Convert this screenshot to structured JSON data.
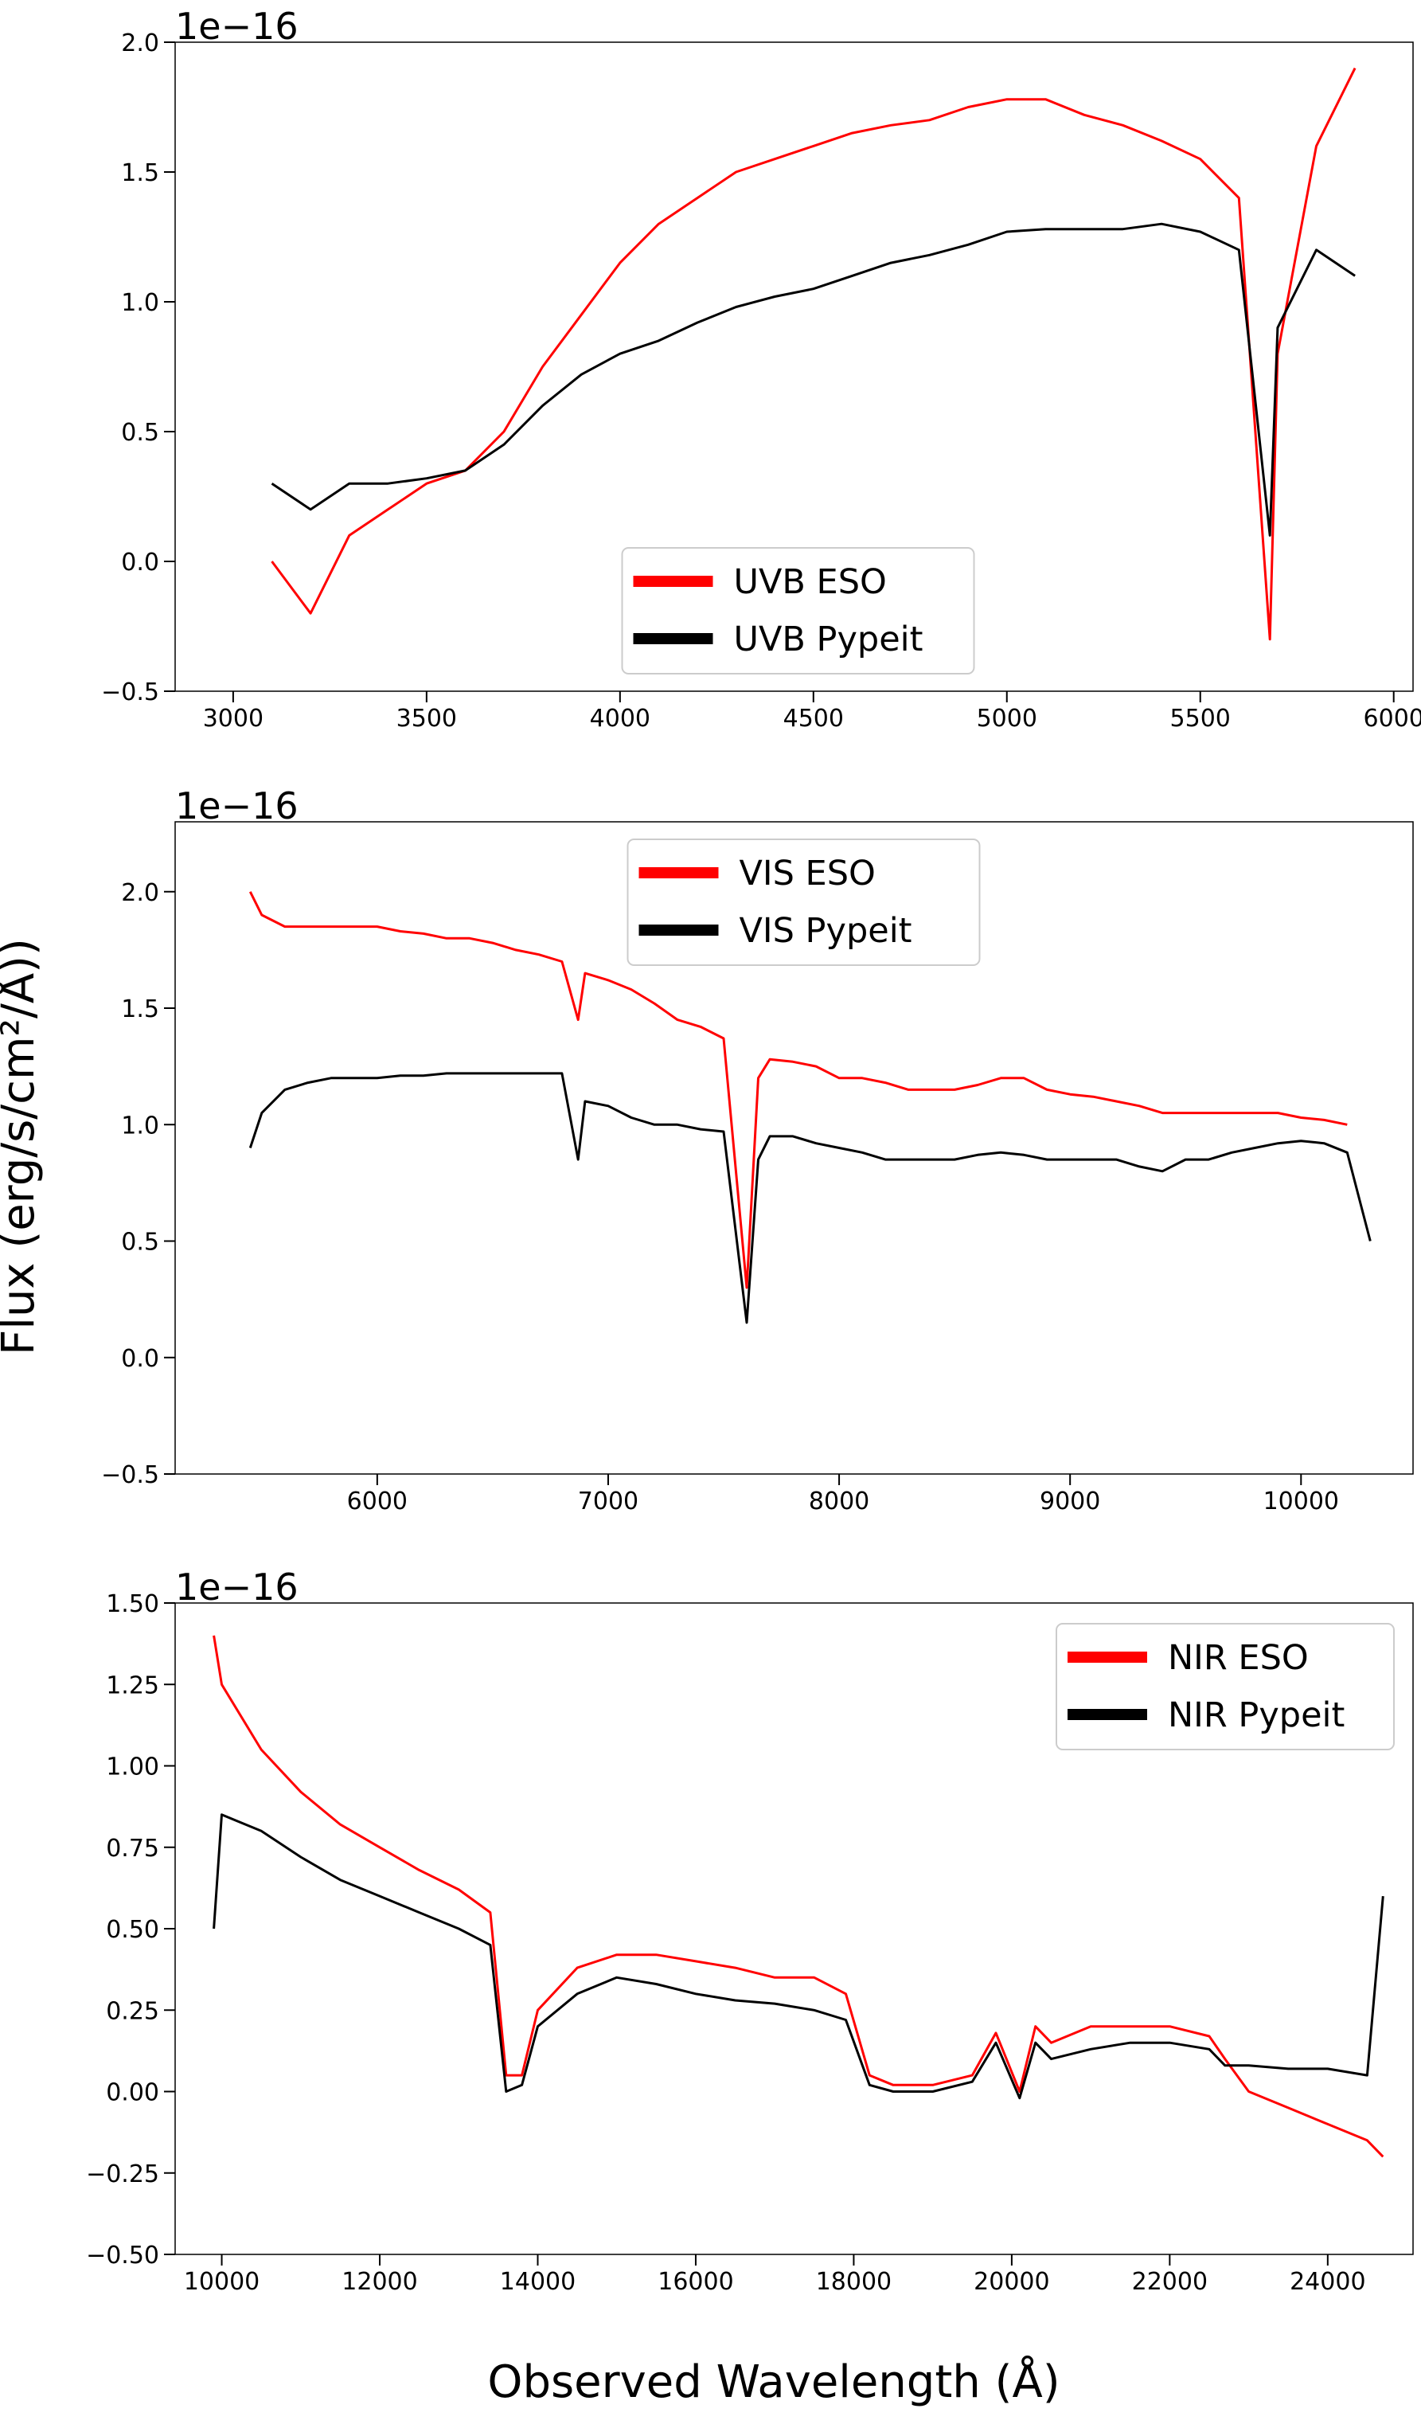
{
  "ylabel": "Flux (erg/s/cm²/Å))",
  "xlabel": "Observed Wavelength (Å)",
  "chart_data": [
    {
      "type": "line",
      "offset_label": "1e−16",
      "legend": "lower center",
      "xlim": [
        2850,
        6050
      ],
      "ylim": [
        -0.5,
        2.0
      ],
      "xticks": [
        3000,
        3500,
        4000,
        4500,
        5000,
        5500,
        6000
      ],
      "yticks": [
        {
          "value": -0.5,
          "label": "−0.5"
        },
        {
          "value": 0,
          "label": "0.0"
        },
        {
          "value": 0.5,
          "label": "0.5"
        },
        {
          "value": 1,
          "label": "1.0"
        },
        {
          "value": 1.5,
          "label": "1.5"
        },
        {
          "value": 2,
          "label": "2.0"
        }
      ],
      "x": [
        3100,
        3200,
        3300,
        3400,
        3500,
        3600,
        3700,
        3800,
        3900,
        4000,
        4100,
        4200,
        4300,
        4400,
        4500,
        4600,
        4700,
        4800,
        4900,
        5000,
        5100,
        5200,
        5300,
        5400,
        5500,
        5600,
        5680,
        5700,
        5800,
        5900
      ],
      "series": [
        {
          "name": "UVB ESO",
          "color": "#ff0000",
          "values": [
            0.0,
            -0.2,
            0.1,
            0.2,
            0.3,
            0.35,
            0.5,
            0.75,
            0.95,
            1.15,
            1.3,
            1.4,
            1.5,
            1.55,
            1.6,
            1.65,
            1.68,
            1.7,
            1.75,
            1.78,
            1.78,
            1.72,
            1.68,
            1.62,
            1.55,
            1.4,
            -0.3,
            0.8,
            1.6,
            1.9
          ]
        },
        {
          "name": "UVB Pypeit",
          "color": "#000000",
          "values": [
            0.3,
            0.2,
            0.3,
            0.3,
            0.32,
            0.35,
            0.45,
            0.6,
            0.72,
            0.8,
            0.85,
            0.92,
            0.98,
            1.02,
            1.05,
            1.1,
            1.15,
            1.18,
            1.22,
            1.27,
            1.28,
            1.28,
            1.28,
            1.3,
            1.27,
            1.2,
            0.1,
            0.9,
            1.2,
            1.1
          ]
        }
      ]
    },
    {
      "type": "line",
      "offset_label": "1e−16",
      "legend": "upper center",
      "xlim": [
        5125,
        10485
      ],
      "ylim": [
        -0.5,
        2.3
      ],
      "xticks": [
        6000,
        7000,
        8000,
        9000,
        10000
      ],
      "yticks": [
        {
          "value": -0.5,
          "label": "−0.5"
        },
        {
          "value": 0,
          "label": "0.0"
        },
        {
          "value": 0.5,
          "label": "0.5"
        },
        {
          "value": 1,
          "label": "1.0"
        },
        {
          "value": 1.5,
          "label": "1.5"
        },
        {
          "value": 2,
          "label": "2.0"
        }
      ],
      "x": [
        5450,
        5500,
        5600,
        5700,
        5800,
        5900,
        6000,
        6100,
        6200,
        6300,
        6400,
        6500,
        6600,
        6700,
        6800,
        6870,
        6900,
        7000,
        7100,
        7200,
        7300,
        7400,
        7500,
        7600,
        7650,
        7700,
        7800,
        7900,
        8000,
        8100,
        8200,
        8300,
        8400,
        8500,
        8600,
        8700,
        8800,
        8900,
        9000,
        9100,
        9200,
        9300,
        9400,
        9500,
        9600,
        9700,
        9800,
        9900,
        10000,
        10100,
        10200,
        10300
      ],
      "series": [
        {
          "name": "VIS ESO",
          "color": "#ff0000",
          "values": [
            2.0,
            1.9,
            1.85,
            1.85,
            1.85,
            1.85,
            1.85,
            1.83,
            1.82,
            1.8,
            1.8,
            1.78,
            1.75,
            1.73,
            1.7,
            1.45,
            1.65,
            1.62,
            1.58,
            1.52,
            1.45,
            1.42,
            1.37,
            0.3,
            1.2,
            1.28,
            1.27,
            1.25,
            1.2,
            1.2,
            1.18,
            1.15,
            1.15,
            1.15,
            1.17,
            1.2,
            1.2,
            1.15,
            1.13,
            1.12,
            1.1,
            1.08,
            1.05,
            1.05,
            1.05,
            1.05,
            1.05,
            1.05,
            1.03,
            1.02,
            1.0,
            null
          ]
        },
        {
          "name": "VIS Pypeit",
          "color": "#000000",
          "values": [
            0.9,
            1.05,
            1.15,
            1.18,
            1.2,
            1.2,
            1.2,
            1.21,
            1.21,
            1.22,
            1.22,
            1.22,
            1.22,
            1.22,
            1.22,
            0.85,
            1.1,
            1.08,
            1.03,
            1.0,
            1.0,
            0.98,
            0.97,
            0.15,
            0.85,
            0.95,
            0.95,
            0.92,
            0.9,
            0.88,
            0.85,
            0.85,
            0.85,
            0.85,
            0.87,
            0.88,
            0.87,
            0.85,
            0.85,
            0.85,
            0.85,
            0.82,
            0.8,
            0.85,
            0.85,
            0.88,
            0.9,
            0.92,
            0.93,
            0.92,
            0.88,
            0.5
          ]
        }
      ]
    },
    {
      "type": "line",
      "offset_label": "1e−16",
      "legend": "upper right",
      "xlim": [
        9410,
        25080
      ],
      "ylim": [
        -0.5,
        1.5
      ],
      "xticks": [
        10000,
        12000,
        14000,
        16000,
        18000,
        20000,
        22000,
        24000
      ],
      "yticks": [
        {
          "value": -0.5,
          "label": "−0.50"
        },
        {
          "value": -0.25,
          "label": "−0.25"
        },
        {
          "value": 0,
          "label": "0.00"
        },
        {
          "value": 0.25,
          "label": "0.25"
        },
        {
          "value": 0.5,
          "label": "0.50"
        },
        {
          "value": 0.75,
          "label": "0.75"
        },
        {
          "value": 1,
          "label": "1.00"
        },
        {
          "value": 1.25,
          "label": "1.25"
        },
        {
          "value": 1.5,
          "label": "1.50"
        }
      ],
      "x": [
        9900,
        10000,
        10500,
        11000,
        11500,
        12000,
        12500,
        13000,
        13400,
        13600,
        13800,
        14000,
        14500,
        15000,
        15500,
        16000,
        16500,
        17000,
        17500,
        17900,
        18200,
        18500,
        19000,
        19500,
        19800,
        20100,
        20300,
        20500,
        21000,
        21500,
        22000,
        22500,
        22700,
        23000,
        23500,
        24000,
        24500,
        24700
      ],
      "series": [
        {
          "name": "NIR ESO",
          "color": "#ff0000",
          "values": [
            1.4,
            1.25,
            1.05,
            0.92,
            0.82,
            0.75,
            0.68,
            0.62,
            0.55,
            0.05,
            0.05,
            0.25,
            0.38,
            0.42,
            0.42,
            0.4,
            0.38,
            0.35,
            0.35,
            0.3,
            0.05,
            0.02,
            0.02,
            0.05,
            0.18,
            0.0,
            0.2,
            0.15,
            0.2,
            0.2,
            0.2,
            0.17,
            0.1,
            0.0,
            -0.05,
            -0.1,
            -0.15,
            -0.2
          ]
        },
        {
          "name": "NIR Pypeit",
          "color": "#000000",
          "values": [
            0.5,
            0.85,
            0.8,
            0.72,
            0.65,
            0.6,
            0.55,
            0.5,
            0.45,
            0.0,
            0.02,
            0.2,
            0.3,
            0.35,
            0.33,
            0.3,
            0.28,
            0.27,
            0.25,
            0.22,
            0.02,
            0.0,
            0.0,
            0.03,
            0.15,
            -0.02,
            0.15,
            0.1,
            0.13,
            0.15,
            0.15,
            0.13,
            0.08,
            0.08,
            0.07,
            0.07,
            0.05,
            0.6
          ]
        }
      ]
    }
  ]
}
